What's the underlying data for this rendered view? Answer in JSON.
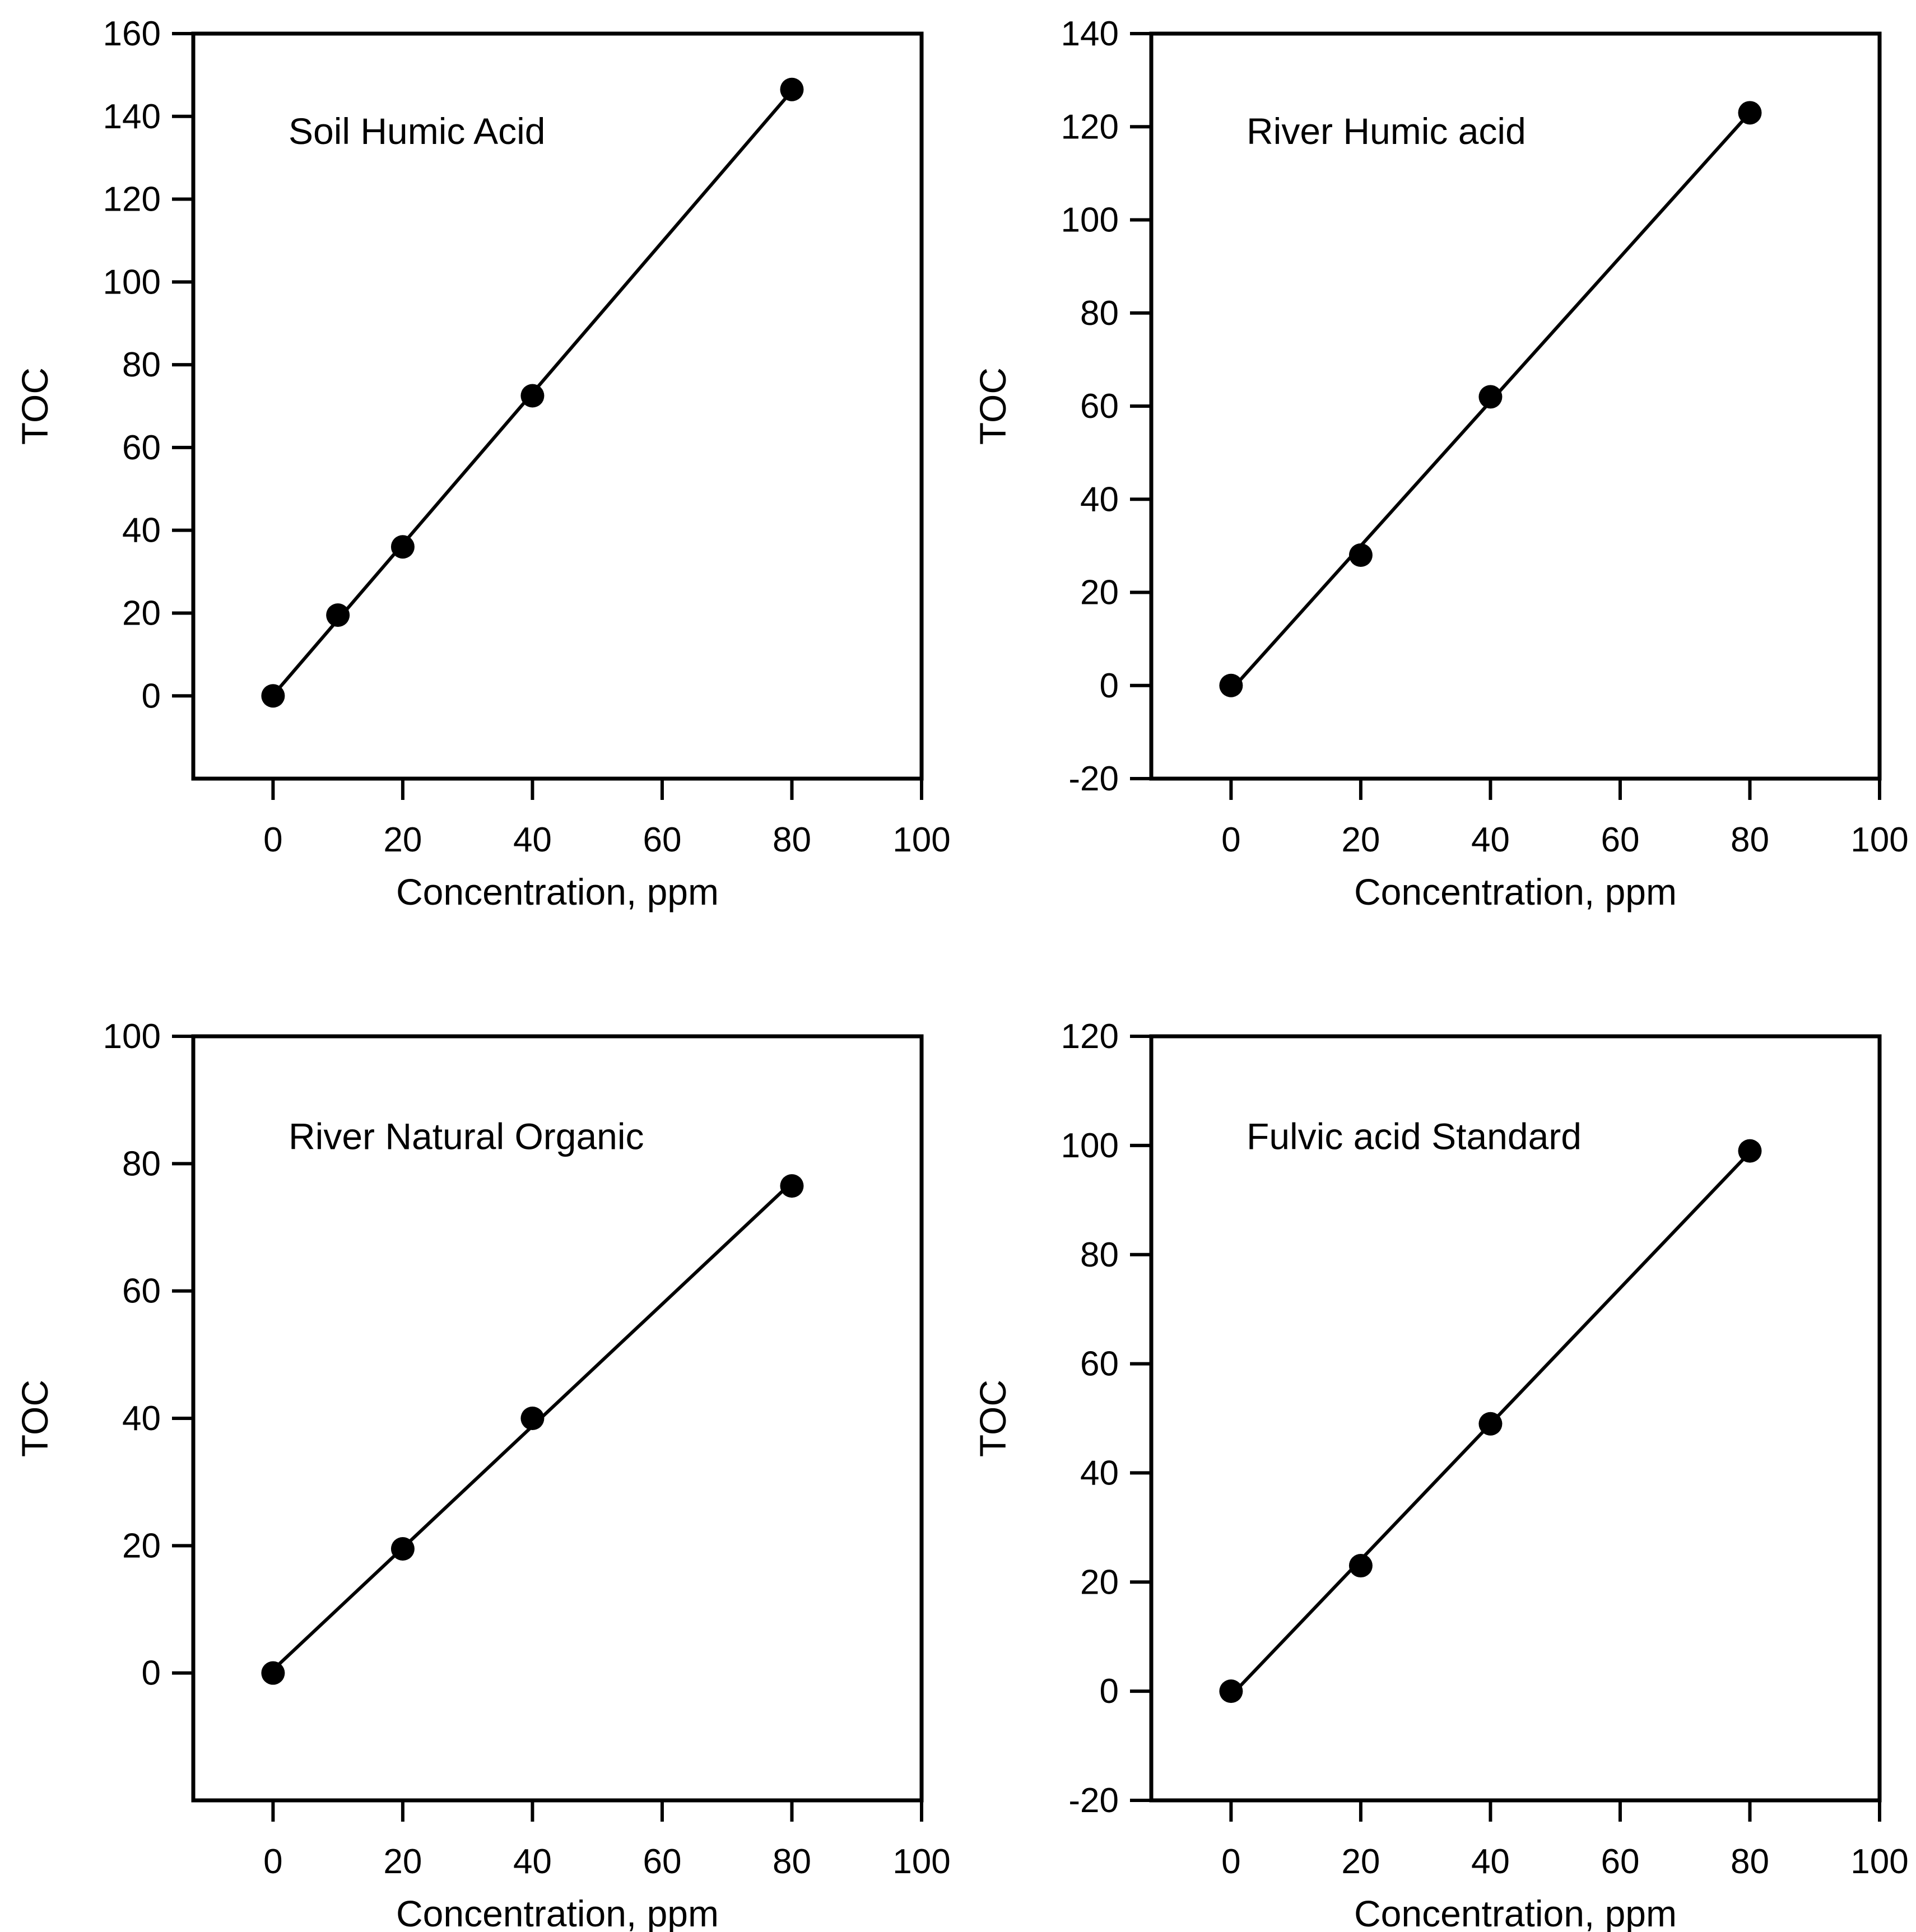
{
  "figure": {
    "background": "#ffffff",
    "rows": 2,
    "cols": 2,
    "description": "Four TOC calibration curves"
  },
  "chart_data": [
    {
      "type": "scatter",
      "title": "Soil Humic Acid",
      "xlabel": "Concentration, ppm",
      "ylabel": "TOC",
      "x": [
        0,
        10,
        20,
        40,
        80
      ],
      "y": [
        0,
        19.5,
        36,
        72.5,
        146.5
      ],
      "x_ticks": [
        0,
        20,
        40,
        60,
        80,
        100
      ],
      "y_ticks": [
        0,
        20,
        40,
        60,
        80,
        100,
        120,
        140,
        160
      ],
      "xlim": [
        -12.3,
        100
      ],
      "ylim": [
        -20,
        160
      ],
      "fit_line": true,
      "legend": "none",
      "grid": false,
      "marker": "filled-circle",
      "marker_color": "#000000",
      "line_color": "#000000"
    },
    {
      "type": "scatter",
      "title": "River Humic acid",
      "xlabel": "Concentration, ppm",
      "ylabel": "TOC",
      "x": [
        0,
        20,
        40,
        80
      ],
      "y": [
        0,
        28,
        62,
        123
      ],
      "x_ticks": [
        0,
        20,
        40,
        60,
        80,
        100
      ],
      "y_ticks": [
        -20,
        0,
        20,
        40,
        60,
        80,
        100,
        120,
        140
      ],
      "xlim": [
        -12.3,
        100
      ],
      "ylim": [
        -20,
        140
      ],
      "fit_line": true,
      "legend": "none",
      "grid": false,
      "marker": "filled-circle",
      "marker_color": "#000000",
      "line_color": "#000000"
    },
    {
      "type": "scatter",
      "title": "River Natural Organic",
      "xlabel": "Concentration, ppm",
      "ylabel": "TOC",
      "x": [
        0,
        20,
        40,
        80
      ],
      "y": [
        0,
        19.5,
        40,
        76.5
      ],
      "x_ticks": [
        0,
        20,
        40,
        60,
        80,
        100
      ],
      "y_ticks": [
        0,
        20,
        40,
        60,
        80,
        100
      ],
      "xlim": [
        -12.3,
        100
      ],
      "ylim": [
        -20,
        100
      ],
      "fit_line": true,
      "legend": "none",
      "grid": false,
      "marker": "filled-circle",
      "marker_color": "#000000",
      "line_color": "#000000"
    },
    {
      "type": "scatter",
      "title": "Fulvic acid Standard",
      "xlabel": "Concentration, ppm",
      "ylabel": "TOC",
      "x": [
        0,
        20,
        40,
        80
      ],
      "y": [
        0,
        23,
        49,
        99
      ],
      "x_ticks": [
        0,
        20,
        40,
        60,
        80,
        100
      ],
      "y_ticks": [
        -20,
        0,
        20,
        40,
        60,
        80,
        100,
        120
      ],
      "xlim": [
        -12.3,
        100
      ],
      "ylim": [
        -20,
        120
      ],
      "fit_line": true,
      "legend": "none",
      "grid": false,
      "marker": "filled-circle",
      "marker_color": "#000000",
      "line_color": "#000000"
    }
  ]
}
